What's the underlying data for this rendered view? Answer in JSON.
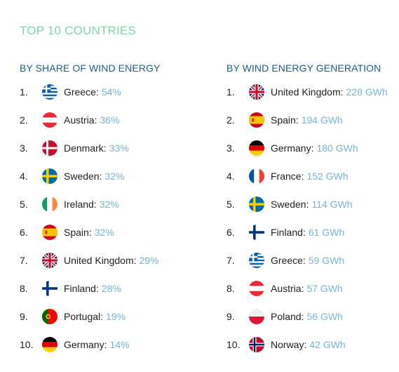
{
  "title": "TOP 10 COUNTRIES",
  "share": {
    "heading": "BY SHARE OF WIND ENERGY",
    "items": [
      {
        "rank": "1.",
        "country": "Greece:",
        "value": "54%",
        "flag": "greece-flag-icon"
      },
      {
        "rank": "2.",
        "country": "Austria:",
        "value": "36%",
        "flag": "austria-flag-icon"
      },
      {
        "rank": "3.",
        "country": "Denmark:",
        "value": "33%",
        "flag": "denmark-flag-icon"
      },
      {
        "rank": "4.",
        "country": "Sweden:",
        "value": "32%",
        "flag": "sweden-flag-icon"
      },
      {
        "rank": "5.",
        "country": "Ireland:",
        "value": "32%",
        "flag": "ireland-flag-icon"
      },
      {
        "rank": "6.",
        "country": "Spain:",
        "value": "32%",
        "flag": "spain-flag-icon"
      },
      {
        "rank": "7.",
        "country": "United Kingdom:",
        "value": "29%",
        "flag": "uk-flag-icon"
      },
      {
        "rank": "8.",
        "country": "Finland:",
        "value": "28%",
        "flag": "finland-flag-icon"
      },
      {
        "rank": "9.",
        "country": "Portugal:",
        "value": "19%",
        "flag": "portugal-flag-icon"
      },
      {
        "rank": "10.",
        "country": "Germany:",
        "value": "14%",
        "flag": "germany-flag-icon"
      }
    ]
  },
  "generation": {
    "heading": "BY WIND ENERGY GENERATION",
    "items": [
      {
        "rank": "1.",
        "country": "United Kingdom:",
        "value": "228 GWh",
        "flag": "uk-flag-icon"
      },
      {
        "rank": "2.",
        "country": "Spain:",
        "value": "194 GWh",
        "flag": "spain-flag-icon"
      },
      {
        "rank": "3.",
        "country": "Germany:",
        "value": "180 GWh",
        "flag": "germany-flag-icon"
      },
      {
        "rank": "4.",
        "country": "France:",
        "value": "152 GWh",
        "flag": "france-flag-icon"
      },
      {
        "rank": "5.",
        "country": "Sweden:",
        "value": "114 GWh",
        "flag": "sweden-flag-icon"
      },
      {
        "rank": "6.",
        "country": "Finland:",
        "value": "61 GWh",
        "flag": "finland-flag-icon"
      },
      {
        "rank": "7.",
        "country": "Greece:",
        "value": "59 GWh",
        "flag": "greece-flag-icon"
      },
      {
        "rank": "8.",
        "country": "Austria:",
        "value": "57 GWh",
        "flag": "austria-flag-icon"
      },
      {
        "rank": "9.",
        "country": "Poland:",
        "value": "56 GWh",
        "flag": "poland-flag-icon"
      },
      {
        "rank": "10.",
        "country": "Norway:",
        "value": "42 GWh",
        "flag": "norway-flag-icon"
      }
    ]
  },
  "colors": {
    "title": "#7fd9a8",
    "heading": "#1b5f8c",
    "value": "#72b7dc",
    "text": "#222222"
  }
}
